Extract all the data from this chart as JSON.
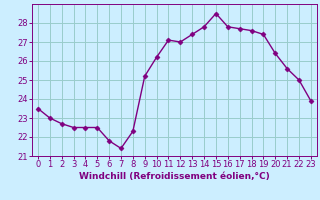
{
  "x": [
    0,
    1,
    2,
    3,
    4,
    5,
    6,
    7,
    8,
    9,
    10,
    11,
    12,
    13,
    14,
    15,
    16,
    17,
    18,
    19,
    20,
    21,
    22,
    23
  ],
  "y": [
    23.5,
    23.0,
    22.7,
    22.5,
    22.5,
    22.5,
    21.8,
    21.4,
    22.3,
    25.2,
    26.2,
    27.1,
    27.0,
    27.4,
    27.8,
    28.5,
    27.8,
    27.7,
    27.6,
    27.4,
    26.4,
    25.6,
    25.0,
    23.9
  ],
  "line_color": "#800080",
  "marker": "D",
  "marker_size": 2.5,
  "bg_color": "#cceeff",
  "grid_color": "#99cccc",
  "xlabel": "Windchill (Refroidissement éolien,°C)",
  "ylim": [
    21,
    29
  ],
  "yticks": [
    21,
    22,
    23,
    24,
    25,
    26,
    27,
    28
  ],
  "xlim": [
    -0.5,
    23.5
  ],
  "xticks": [
    0,
    1,
    2,
    3,
    4,
    5,
    6,
    7,
    8,
    9,
    10,
    11,
    12,
    13,
    14,
    15,
    16,
    17,
    18,
    19,
    20,
    21,
    22,
    23
  ],
  "xlabel_fontsize": 6.5,
  "tick_fontsize": 6.0,
  "line_width": 1.0
}
